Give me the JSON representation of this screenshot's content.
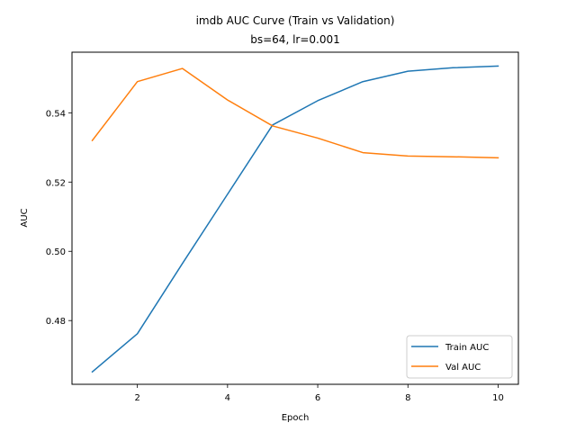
{
  "chart_data": {
    "type": "line",
    "title": "imdb AUC Curve (Train vs Validation)",
    "subtitle": "bs=64, lr=0.001",
    "xlabel": "Epoch",
    "ylabel": "AUC",
    "x": [
      1,
      2,
      3,
      4,
      5,
      6,
      7,
      8,
      9,
      10
    ],
    "xlim": [
      0.55,
      10.45
    ],
    "ylim": [
      0.4616,
      0.5575
    ],
    "xticks": [
      2,
      4,
      6,
      8,
      10
    ],
    "yticks": [
      0.48,
      0.5,
      0.52,
      0.54
    ],
    "ytick_labels": [
      "0.48",
      "0.50",
      "0.52",
      "0.54"
    ],
    "grid": false,
    "legend_position": "lower-right",
    "series": [
      {
        "name": "Train AUC",
        "color": "#1f77b4",
        "values": [
          0.4652,
          0.4762,
          0.4965,
          0.5165,
          0.5365,
          0.5435,
          0.549,
          0.552,
          0.553,
          0.5535
        ]
      },
      {
        "name": "Val AUC",
        "color": "#ff7f0e",
        "values": [
          0.532,
          0.549,
          0.5528,
          0.5437,
          0.5362,
          0.5327,
          0.5285,
          0.5275,
          0.5273,
          0.527
        ]
      }
    ]
  }
}
